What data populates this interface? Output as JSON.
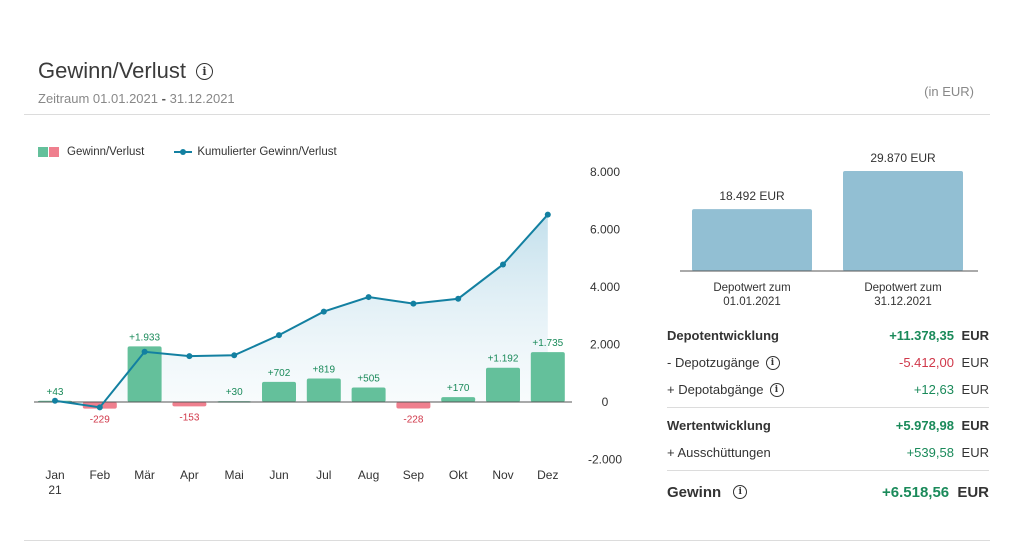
{
  "header": {
    "title": "Gewinn/Verlust",
    "period_label": "Zeitraum",
    "period_from": "01.01.2021",
    "period_sep": "-",
    "period_to": "31.12.2021",
    "currency_note": "(in EUR)"
  },
  "legend": {
    "bars_label": "Gewinn/Verlust",
    "line_label": "Kumulierter Gewinn/Verlust"
  },
  "colors": {
    "positive_bar": "#64c09b",
    "negative_bar": "#ef7f8e",
    "line": "#1380a1",
    "depot_bar": "#92bfd3",
    "positive_text": "#1a8a5a",
    "negative_text": "#d0384a"
  },
  "chart_data": [
    {
      "type": "bar",
      "categories": [
        "Jan",
        "Feb",
        "Mär",
        "Apr",
        "Mai",
        "Jun",
        "Jul",
        "Aug",
        "Sep",
        "Okt",
        "Nov",
        "Dez"
      ],
      "category_sublabels": [
        "21",
        "",
        "",
        "",
        "",
        "",
        "",
        "",
        "",
        "",
        "",
        ""
      ],
      "series": [
        {
          "name": "Gewinn/Verlust",
          "type": "bar",
          "values": [
            43,
            -229,
            1933,
            -153,
            30,
            702,
            819,
            505,
            -228,
            170,
            1192,
            1735
          ],
          "labels": [
            "+43",
            "-229",
            "+1.933",
            "-153",
            "+30",
            "+702",
            "+819",
            "+505",
            "-228",
            "+170",
            "+1.192",
            "+1.735"
          ]
        },
        {
          "name": "Kumulierter Gewinn/Verlust",
          "type": "line",
          "values": [
            43,
            -186,
            1747,
            1594,
            1624,
            2326,
            3145,
            3650,
            3422,
            3592,
            4784,
            6519
          ]
        }
      ],
      "ylim": [
        -2000,
        8000
      ],
      "yticks": [
        8000,
        6000,
        4000,
        2000,
        0,
        -2000
      ],
      "ytick_labels": [
        "8.000",
        "6.000",
        "4.000",
        "2.000",
        "0",
        "-2.000"
      ],
      "grid": false,
      "legend_position": "top-left"
    },
    {
      "type": "bar",
      "categories": [
        "Depotwert zum|01.01.2021",
        "Depotwert zum|31.12.2021"
      ],
      "values": [
        18492,
        29870
      ],
      "labels": [
        "18.492 EUR",
        "29.870 EUR"
      ]
    }
  ],
  "summary": {
    "rows": [
      {
        "label": "Depotentwicklung",
        "value": "+11.378,35",
        "unit": "EUR",
        "sign": "pos",
        "bold": true,
        "info": false
      },
      {
        "label": "- Depotzugänge",
        "value": "-5.412,00",
        "unit": "EUR",
        "sign": "neg",
        "bold": false,
        "info": true
      },
      {
        "label": "+ Depotabgänge",
        "value": "+12,63",
        "unit": "EUR",
        "sign": "pos",
        "bold": false,
        "info": true
      },
      {
        "label": "Wertentwicklung",
        "value": "+5.978,98",
        "unit": "EUR",
        "sign": "pos",
        "bold": true,
        "info": false
      },
      {
        "label": "+ Ausschüttungen",
        "value": "+539,58",
        "unit": "EUR",
        "sign": "pos",
        "bold": false,
        "info": false
      },
      {
        "label": "Gewinn",
        "value": "+6.518,56",
        "unit": "EUR",
        "sign": "pos",
        "bold": true,
        "info": true
      }
    ]
  }
}
